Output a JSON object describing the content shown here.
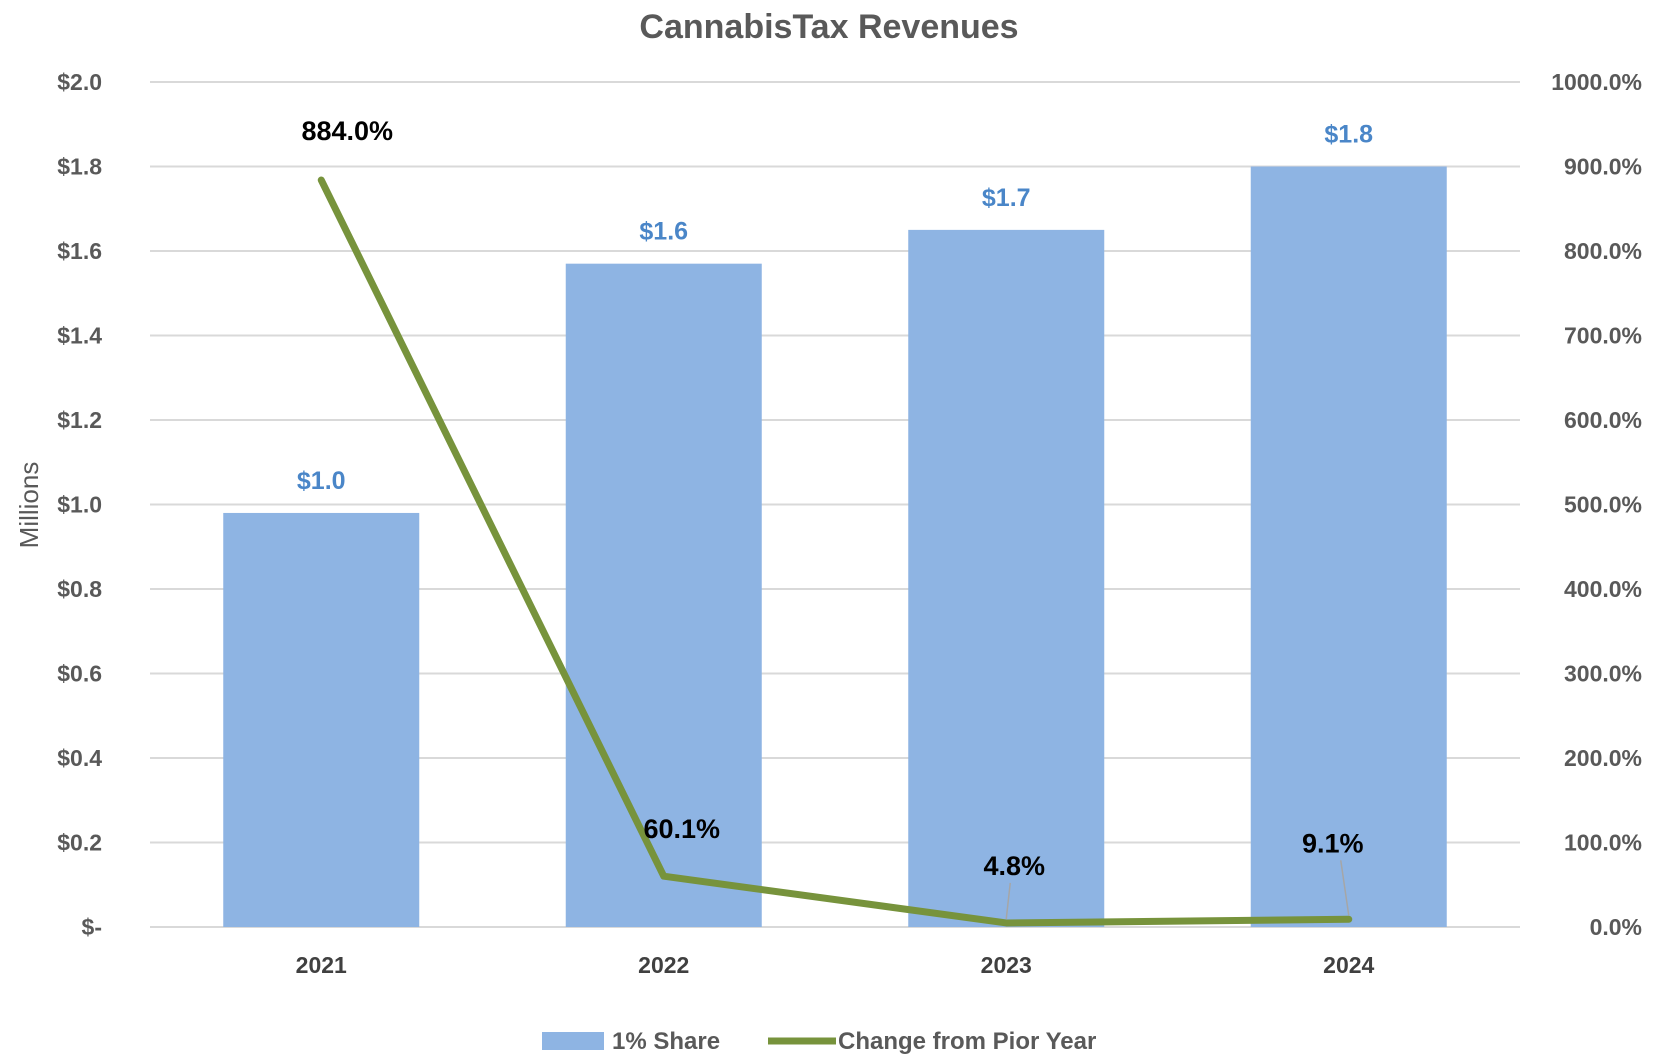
{
  "chart_data": {
    "type": "bar",
    "title": "CannabisTax Revenues",
    "xlabel": "",
    "ylabel": "Millions",
    "categories": [
      "2021",
      "2022",
      "2023",
      "2024"
    ],
    "series": [
      {
        "name": "1% Share",
        "type": "bar",
        "axis": "left",
        "values": [
          0.98,
          1.57,
          1.65,
          1.8
        ],
        "labels": [
          "$1.0",
          "$1.6",
          "$1.7",
          "$1.8"
        ],
        "color": "#8eb4e3"
      },
      {
        "name": "Change from Pior Year",
        "type": "line",
        "axis": "right",
        "values": [
          884.0,
          60.1,
          4.8,
          9.1
        ],
        "labels": [
          "884.0%",
          "60.1%",
          "4.8%",
          "9.1%"
        ],
        "color": "#77933c"
      }
    ],
    "ylim": [
      0,
      2.0
    ],
    "y_ticks": [
      0,
      0.2,
      0.4,
      0.6,
      0.8,
      1.0,
      1.2,
      1.4,
      1.6,
      1.8,
      2.0
    ],
    "y_tick_labels": [
      "$-",
      "$0.2",
      "$0.4",
      "$0.6",
      "$0.8",
      "$1.0",
      "$1.2",
      "$1.4",
      "$1.6",
      "$1.8",
      "$2.0"
    ],
    "y2lim": [
      0,
      1000
    ],
    "y2_ticks": [
      0,
      100,
      200,
      300,
      400,
      500,
      600,
      700,
      800,
      900,
      1000
    ],
    "y2_tick_labels": [
      "0.0%",
      "100.0%",
      "200.0%",
      "300.0%",
      "400.0%",
      "500.0%",
      "600.0%",
      "700.0%",
      "800.0%",
      "900.0%",
      "1000.0%"
    ],
    "grid": true,
    "legend": "bottom",
    "gridline_color": "#d9d9d9"
  }
}
